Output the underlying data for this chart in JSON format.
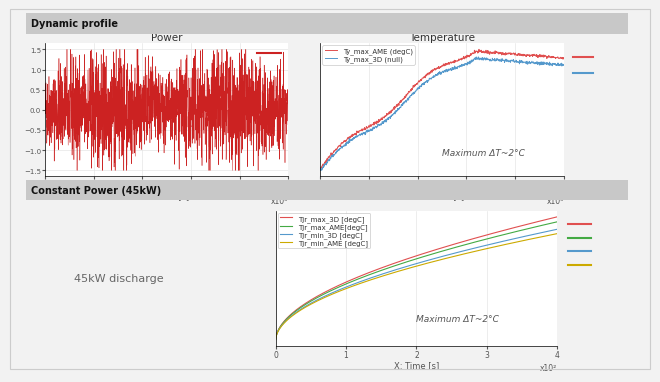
{
  "top_section_label": "Dynamic profile",
  "bottom_section_label": "Constant Power (45kW)",
  "top_left_title": "Power",
  "top_right_title": "Temperature",
  "top_right_legend": [
    "Ty_max_AME (degC)",
    "Ty_max_3D (null)"
  ],
  "top_right_legend_colors": [
    "#e05050",
    "#5599cc"
  ],
  "top_right_annotation": "Maximum ΔT~2°C",
  "bottom_left_text": "45kW discharge",
  "bottom_right_legend": [
    "Tjr_max_3D [degC]",
    "Tjr_max_AME[degC]",
    "Tjr_min_3D [degC]",
    "Tjr_min_AME [degC]"
  ],
  "bottom_right_legend_colors": [
    "#e05050",
    "#44aa44",
    "#5599cc",
    "#ccaa00"
  ],
  "bottom_right_annotation": "Maximum ΔT~2°C",
  "xlabel": "X: Time [s]",
  "top_xscale_label": "x10³",
  "bottom_xscale_label": "x10²",
  "background_color": "#f2f2f2",
  "plot_bg": "#ffffff",
  "section_label_bg": "#c8c8c8",
  "grid_color": "#e0e0e0",
  "power_swatch_color": "#cc2222",
  "power_line_color": "#cc2222"
}
